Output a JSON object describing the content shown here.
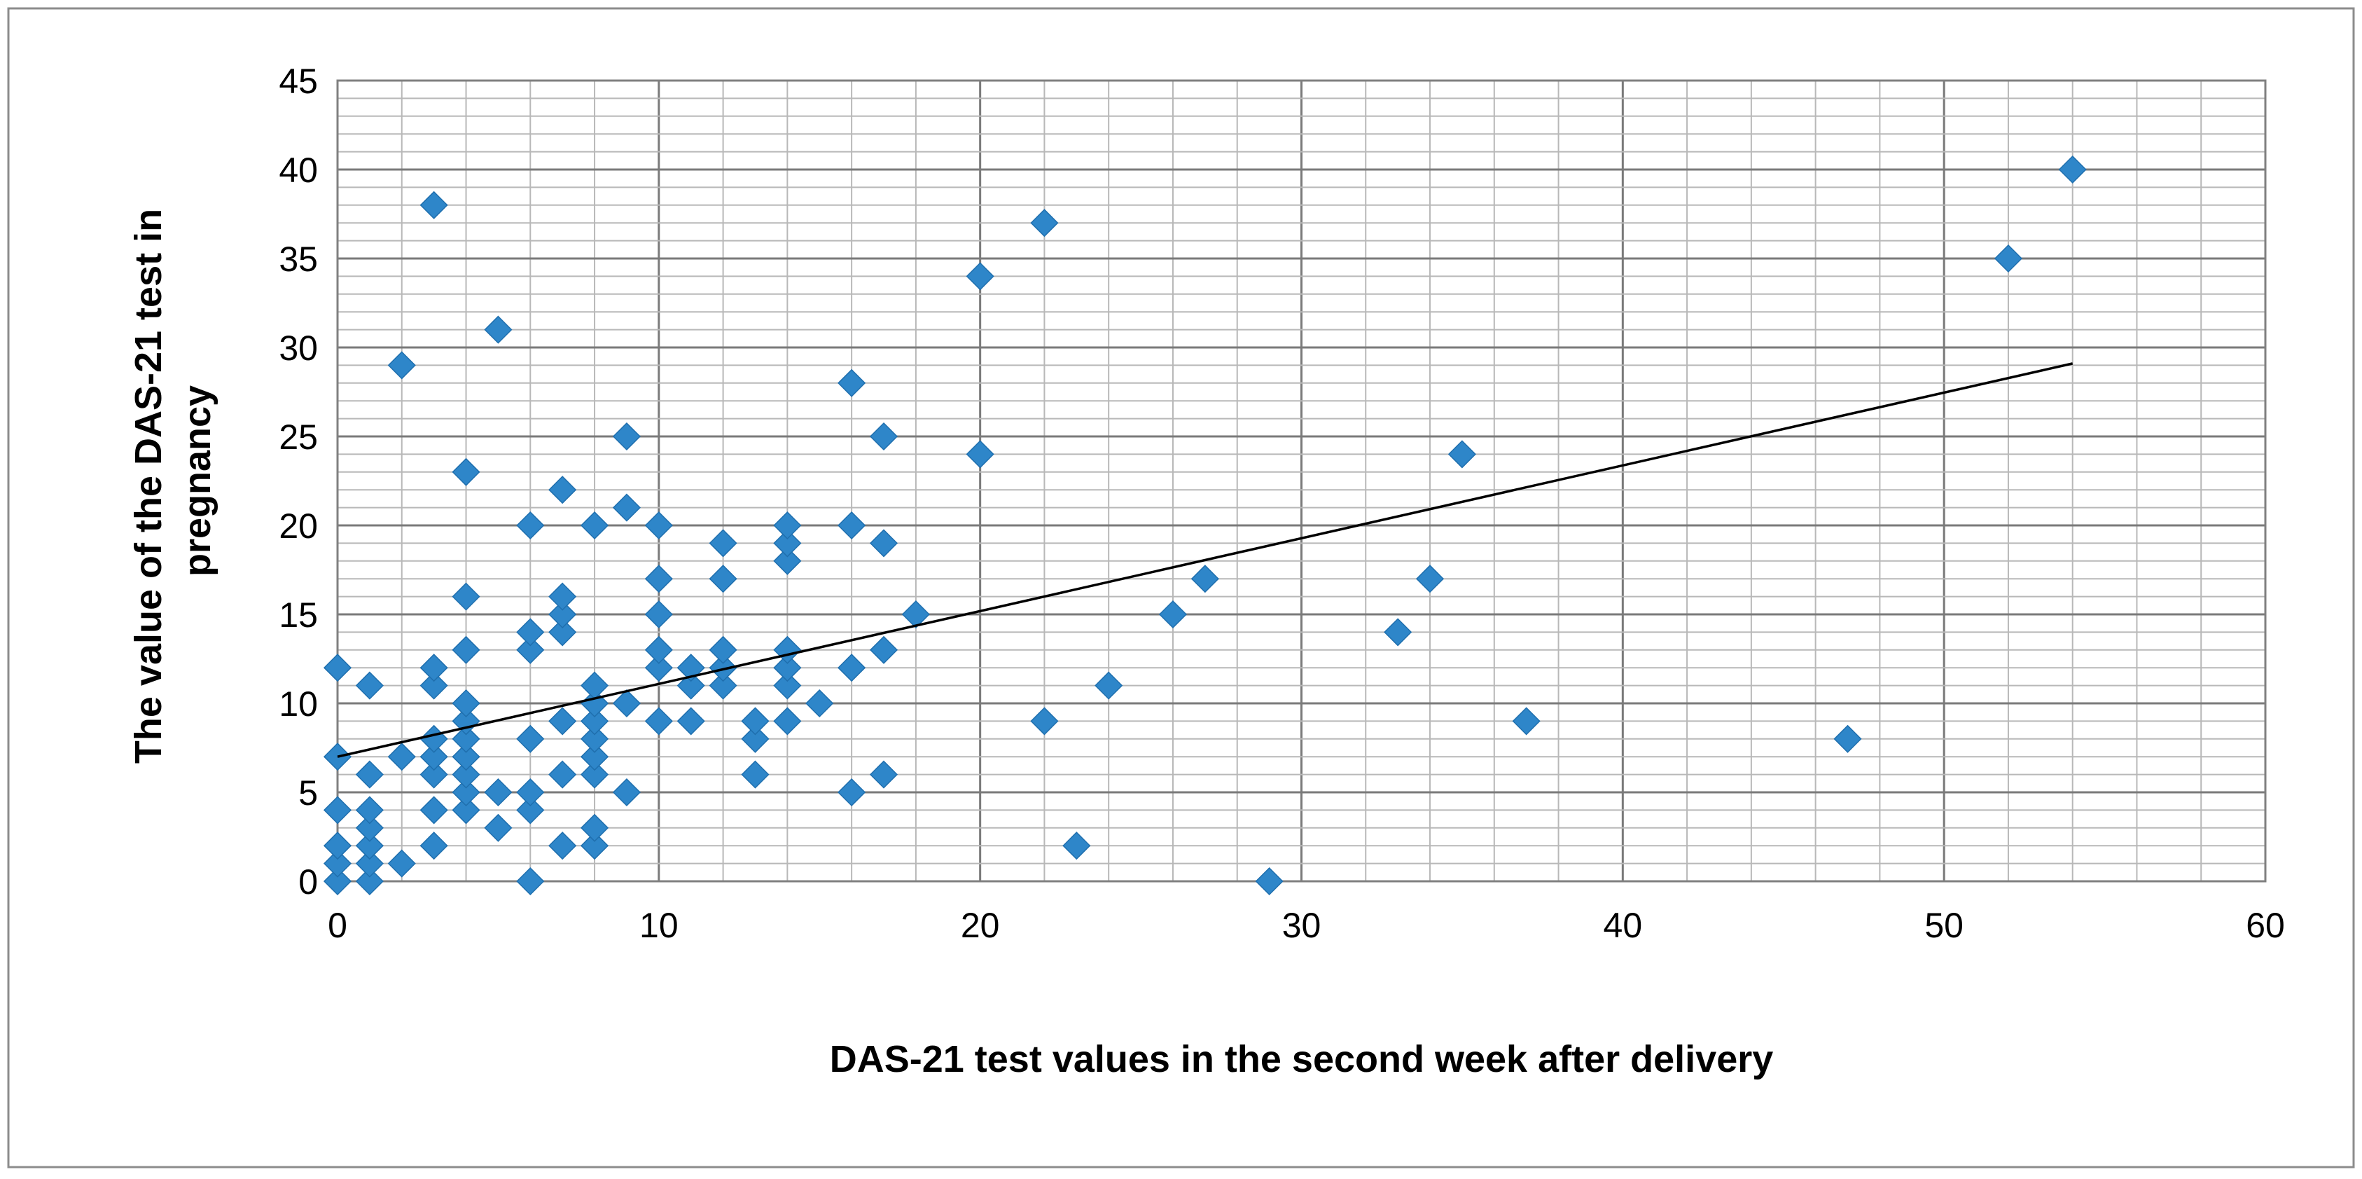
{
  "chart_data": {
    "type": "scatter",
    "title": "",
    "xlabel": "DAS-21 test values in the second week after delivery",
    "ylabel_lines": [
      "The value of the DAS-21 test in",
      "pregnancy"
    ],
    "xlim": [
      0,
      60
    ],
    "ylim": [
      0,
      45
    ],
    "x_ticks": [
      0,
      10,
      20,
      30,
      40,
      50,
      60
    ],
    "y_ticks": [
      0,
      5,
      10,
      15,
      20,
      25,
      30,
      35,
      40,
      45
    ],
    "x_minor_step": 2,
    "y_minor_step": 1,
    "grid": true,
    "legend": "none",
    "marker": "diamond",
    "marker_color": "#2E86C9",
    "trendline": {
      "type": "linear",
      "x": [
        0,
        54
      ],
      "y": [
        7,
        29.1
      ],
      "color": "#000000"
    },
    "series": [
      {
        "name": "DAS-21",
        "points": [
          [
            0,
            0
          ],
          [
            0,
            1
          ],
          [
            0,
            2
          ],
          [
            0,
            4
          ],
          [
            0,
            7
          ],
          [
            0,
            12
          ],
          [
            1,
            0
          ],
          [
            1,
            1
          ],
          [
            1,
            2
          ],
          [
            1,
            3
          ],
          [
            1,
            4
          ],
          [
            1,
            6
          ],
          [
            1,
            11
          ],
          [
            2,
            1
          ],
          [
            2,
            7
          ],
          [
            2,
            29
          ],
          [
            3,
            2
          ],
          [
            3,
            4
          ],
          [
            3,
            6
          ],
          [
            3,
            7
          ],
          [
            3,
            8
          ],
          [
            3,
            11
          ],
          [
            3,
            12
          ],
          [
            3,
            38
          ],
          [
            4,
            4
          ],
          [
            4,
            5
          ],
          [
            4,
            6
          ],
          [
            4,
            7
          ],
          [
            4,
            8
          ],
          [
            4,
            9
          ],
          [
            4,
            10
          ],
          [
            4,
            13
          ],
          [
            4,
            16
          ],
          [
            4,
            23
          ],
          [
            5,
            3
          ],
          [
            5,
            5
          ],
          [
            5,
            31
          ],
          [
            6,
            0
          ],
          [
            6,
            4
          ],
          [
            6,
            5
          ],
          [
            6,
            8
          ],
          [
            6,
            13
          ],
          [
            6,
            14
          ],
          [
            6,
            20
          ],
          [
            7,
            2
          ],
          [
            7,
            6
          ],
          [
            7,
            9
          ],
          [
            7,
            14
          ],
          [
            7,
            15
          ],
          [
            7,
            16
          ],
          [
            7,
            22
          ],
          [
            8,
            2
          ],
          [
            8,
            3
          ],
          [
            8,
            6
          ],
          [
            8,
            7
          ],
          [
            8,
            8
          ],
          [
            8,
            9
          ],
          [
            8,
            10
          ],
          [
            8,
            11
          ],
          [
            8,
            20
          ],
          [
            9,
            5
          ],
          [
            9,
            10
          ],
          [
            9,
            21
          ],
          [
            9,
            25
          ],
          [
            10,
            9
          ],
          [
            10,
            12
          ],
          [
            10,
            13
          ],
          [
            10,
            15
          ],
          [
            10,
            17
          ],
          [
            10,
            20
          ],
          [
            11,
            9
          ],
          [
            11,
            11
          ],
          [
            11,
            12
          ],
          [
            12,
            11
          ],
          [
            12,
            12
          ],
          [
            12,
            13
          ],
          [
            12,
            17
          ],
          [
            12,
            19
          ],
          [
            13,
            6
          ],
          [
            13,
            8
          ],
          [
            13,
            9
          ],
          [
            14,
            9
          ],
          [
            14,
            11
          ],
          [
            14,
            12
          ],
          [
            14,
            13
          ],
          [
            14,
            18
          ],
          [
            14,
            19
          ],
          [
            14,
            20
          ],
          [
            15,
            10
          ],
          [
            16,
            5
          ],
          [
            16,
            12
          ],
          [
            16,
            20
          ],
          [
            16,
            28
          ],
          [
            17,
            6
          ],
          [
            17,
            13
          ],
          [
            17,
            19
          ],
          [
            17,
            25
          ],
          [
            18,
            15
          ],
          [
            20,
            24
          ],
          [
            20,
            34
          ],
          [
            22,
            9
          ],
          [
            22,
            37
          ],
          [
            23,
            2
          ],
          [
            24,
            11
          ],
          [
            26,
            15
          ],
          [
            27,
            17
          ],
          [
            29,
            0
          ],
          [
            33,
            14
          ],
          [
            34,
            17
          ],
          [
            35,
            24
          ],
          [
            37,
            9
          ],
          [
            47,
            8
          ],
          [
            52,
            35
          ],
          [
            54,
            40
          ]
        ]
      }
    ]
  }
}
